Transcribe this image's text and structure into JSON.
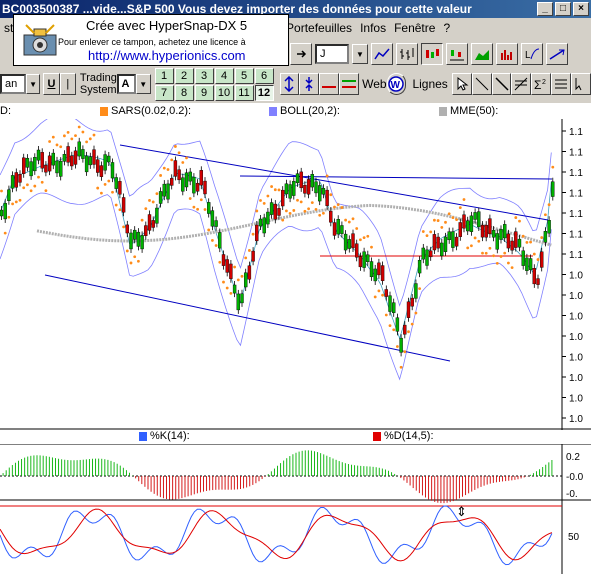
{
  "window": {
    "title": "BC003500387  ...vide...S&P 500 Vous devez importer des données pour cette valeur",
    "min": "_",
    "max": "□",
    "close": "×"
  },
  "menu": {
    "items": [
      "Portefeuilles",
      "Infos",
      "Fenêtre",
      "?"
    ],
    "left_fragment": "ste"
  },
  "stamp": {
    "line1": "Crée avec HyperSnap-DX 5",
    "line2": "Pour enlever ce tampon, achetez une licence à",
    "line3": "http://www.hyperionics.com"
  },
  "toolbar": {
    "period_value": "J",
    "font_fragment": "an",
    "u_label": "U",
    "trading_system_label": "Trading System",
    "ts_value": "A",
    "numbers": [
      "1",
      "2",
      "3",
      "4",
      "5",
      "6",
      "7",
      "8",
      "9",
      "10",
      "11",
      "12"
    ],
    "selected_number": "12",
    "web_label": "Web",
    "lines_label": "Lignes"
  },
  "legend": {
    "left_fragment": "D:",
    "sar": "SARS(0.02,0.2):",
    "boll": "BOLL(20,2):",
    "mme": "MME(50):",
    "stoch_k": "%K(14):",
    "stoch_d": "%D(14,5):"
  },
  "colors": {
    "sar": "#ff8c1a",
    "boll": "#8080ff",
    "mme": "#b0b0b0",
    "up_candle": "#00b000",
    "down_candle": "#d00000",
    "channel": "#0000c0",
    "support": "#e00000",
    "k_line": "#3060ff",
    "d_line": "#e00000"
  },
  "axis": {
    "price_ticks": [
      "1.1",
      "1.1",
      "1.1",
      "1.1",
      "1.1",
      "1.1",
      "1.1",
      "1.0",
      "1.0",
      "1.0",
      "1.0",
      "1.0",
      "1.0",
      "1.0",
      "1.0"
    ],
    "osc_ticks": [
      "0.2",
      "-0.0",
      "-0."
    ],
    "stoch_ticks": [
      "50"
    ]
  }
}
